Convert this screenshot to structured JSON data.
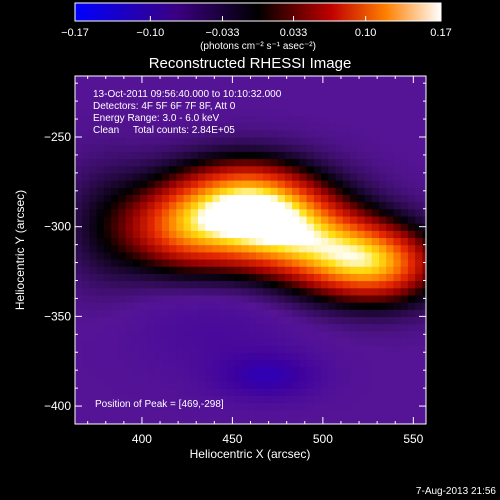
{
  "chart_data": {
    "type": "heatmap",
    "title": "Reconstructed RHESSI Image",
    "xlabel": "Heliocentric X (arcsec)",
    "ylabel": "Heliocentric Y (arcsec)",
    "xlim": [
      363,
      557
    ],
    "ylim": [
      -410,
      -216
    ],
    "x_ticks": [
      400,
      450,
      500,
      550
    ],
    "y_ticks": [
      -400,
      -350,
      -300,
      -250
    ],
    "info_lines": [
      "13-Oct-2011 09:56:40.000 to 10:10:32.000",
      "Detectors: 4F 5F 6F 7F 8F, Att 0",
      "Energy Range: 3.0 - 6.0 keV",
      "Clean     Total counts: 2.84E+05"
    ],
    "peak_text": "Position of Peak = [469,-298]",
    "peak": {
      "x": 469,
      "y": -298
    },
    "colorbar": {
      "min": -0.17,
      "max": 0.17,
      "ticks": [
        "-0.17",
        "-0.10",
        "-0.033",
        "0.033",
        "0.10",
        "0.17"
      ],
      "tick_values": [
        -0.17,
        -0.1,
        -0.033,
        0.033,
        0.1,
        0.17
      ],
      "label": "(photons cm⁻² s⁻¹ asec⁻²)"
    },
    "background_level": -0.06,
    "sources": [
      {
        "x": 469,
        "y": -298,
        "amp": 0.22,
        "sx": 30,
        "sy": 18
      },
      {
        "x": 420,
        "y": -300,
        "amp": 0.12,
        "sx": 22,
        "sy": 18
      },
      {
        "x": 515,
        "y": -318,
        "amp": 0.15,
        "sx": 26,
        "sy": 16
      },
      {
        "x": 540,
        "y": -322,
        "amp": 0.08,
        "sx": 22,
        "sy": 15
      },
      {
        "x": 455,
        "y": -278,
        "amp": 0.08,
        "sx": 25,
        "sy": 14
      },
      {
        "x": 380,
        "y": -300,
        "amp": 0.04,
        "sx": 18,
        "sy": 25
      },
      {
        "x": 470,
        "y": -383,
        "amp": -0.05,
        "sx": 20,
        "sy": 9
      },
      {
        "x": 440,
        "y": -355,
        "amp": -0.02,
        "sx": 35,
        "sy": 20
      }
    ],
    "colors": {
      "background": "#000000",
      "axis": "#ffffff"
    }
  },
  "footer": {
    "timestamp": "7-Aug-2013 21:56"
  }
}
